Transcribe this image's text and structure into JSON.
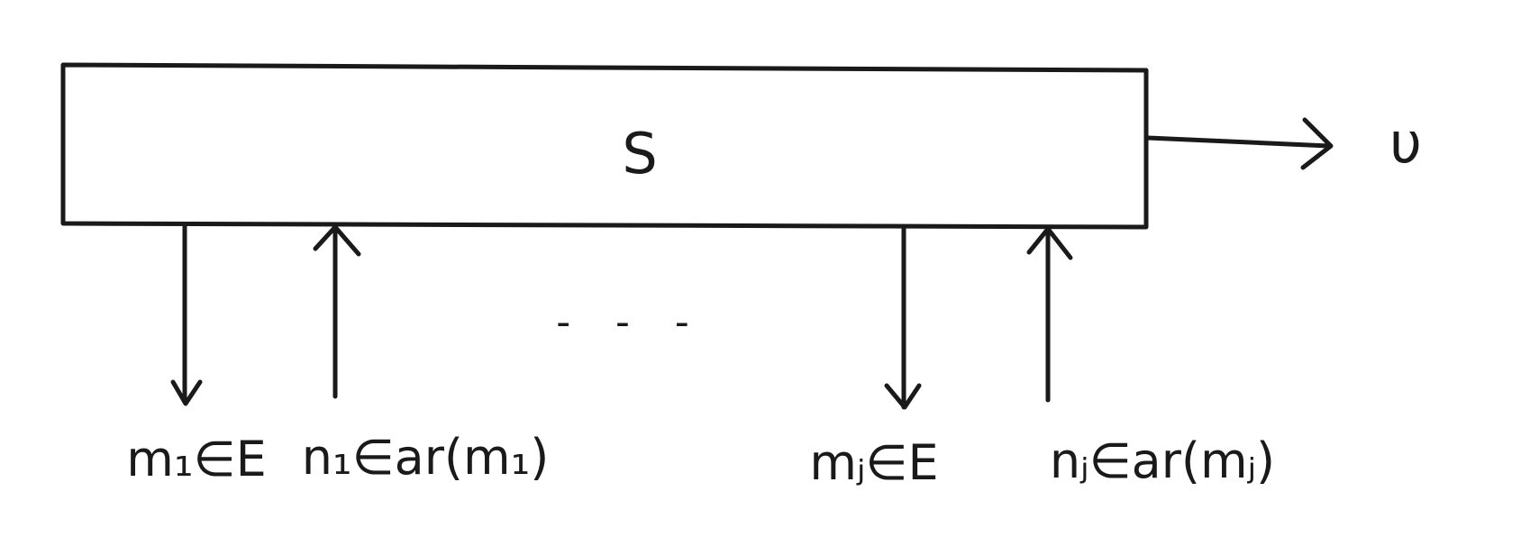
{
  "diagram": {
    "box_label": "S",
    "output_label": "υ",
    "ellipsis": "- - -",
    "labels": {
      "m1": "m₁∈E",
      "n1": "n₁∈ar(m₁)",
      "mj": "mⱼ∈E",
      "nj": "nⱼ∈ar(mⱼ)"
    }
  },
  "colors": {
    "ink": "#1a1a1a",
    "paper": "#ffffff"
  }
}
